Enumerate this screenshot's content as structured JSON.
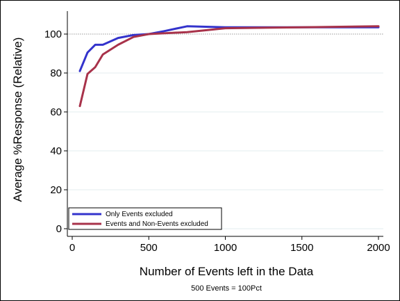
{
  "chart_data": {
    "type": "line",
    "xlabel": "Number of Events left in the Data",
    "ylabel": "Average %Response (Relative)",
    "note": "500 Events = 100Pct",
    "xlim": [
      0,
      2000
    ],
    "ylim": [
      0,
      100
    ],
    "x_ticks": [
      0,
      500,
      1000,
      1500,
      2000
    ],
    "y_ticks": [
      0,
      20,
      40,
      60,
      80,
      100
    ],
    "grid": true,
    "reference_line": 100,
    "legend_position": "bottom-left",
    "series": [
      {
        "name": "Only Events excluded",
        "color": "#3333cc",
        "x": [
          50,
          100,
          150,
          200,
          300,
          400,
          500,
          600,
          750,
          1000,
          1500,
          2000
        ],
        "y": [
          81,
          90.5,
          94.5,
          94.5,
          98,
          99.5,
          100,
          101.5,
          104,
          103.5,
          103.5,
          103.5
        ]
      },
      {
        "name": "Events and Non-Events excluded",
        "color": "#a8324a",
        "x": [
          50,
          100,
          150,
          200,
          300,
          400,
          500,
          750,
          1000,
          1500,
          2000
        ],
        "y": [
          63,
          79.5,
          83,
          89.5,
          94.5,
          98.5,
          100,
          101,
          103,
          103.5,
          104
        ]
      }
    ]
  }
}
